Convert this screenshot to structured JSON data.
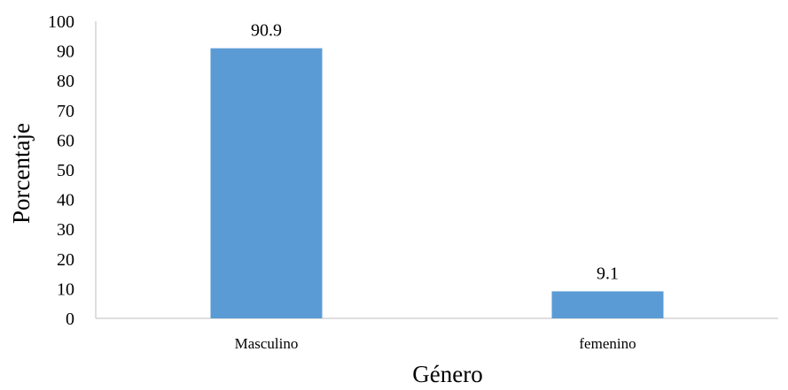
{
  "chart_data": {
    "type": "bar",
    "title": "",
    "xlabel": "Género",
    "ylabel": "Porcentaje",
    "categories": [
      "Masculino",
      "femenino"
    ],
    "values": [
      90.9,
      9.1
    ],
    "data_labels": [
      "90.9",
      "9.1"
    ],
    "ylim": [
      0,
      100
    ],
    "yticks": [
      "0",
      "10",
      "20",
      "30",
      "40",
      "50",
      "60",
      "70",
      "80",
      "90",
      "100"
    ],
    "grid": false,
    "legend": "none",
    "bar_color": "#5b9bd5"
  }
}
